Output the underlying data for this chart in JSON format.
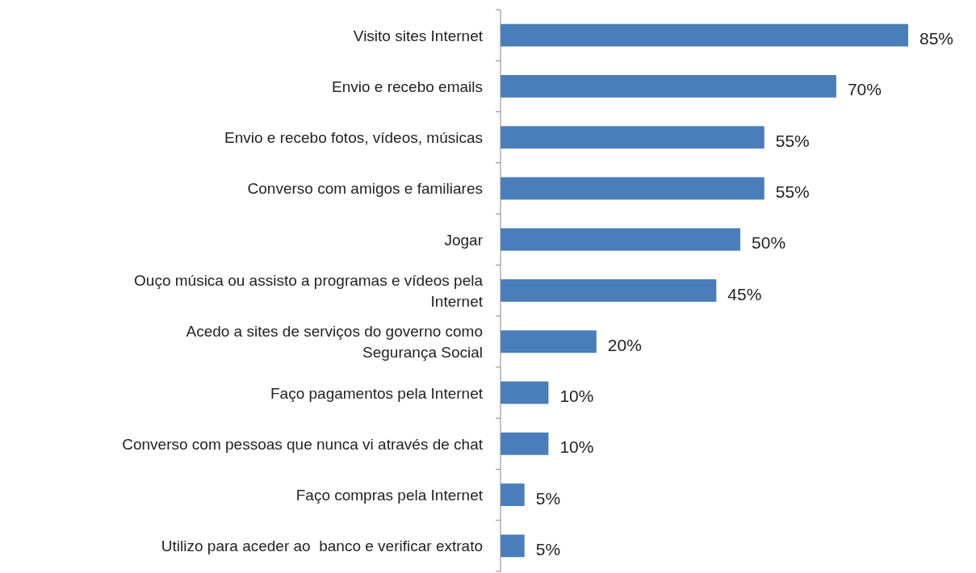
{
  "chart_data": {
    "type": "bar",
    "orientation": "horizontal",
    "categories": [
      "Visito sites Internet",
      "Envio e recebo emails",
      "Envio e recebo fotos, vídeos, músicas",
      "Converso com amigos e familiares",
      "Jogar",
      "Ouço música ou assisto a programas e vídeos pela Internet",
      "Acedo a sites de serviços do governo como Segurança Social",
      "Faço pagamentos pela Internet",
      "Converso com pessoas que nunca vi através de chat",
      "Faço compras pela Internet",
      "Utilizo para aceder ao  banco e verificar extrato"
    ],
    "values": [
      85,
      70,
      55,
      55,
      50,
      45,
      20,
      10,
      10,
      5,
      5
    ],
    "value_labels": [
      "85%",
      "70%",
      "55%",
      "55%",
      "50%",
      "45%",
      "20%",
      "10%",
      "10%",
      "5%",
      "5%"
    ],
    "color": "#4a7ebb"
  }
}
